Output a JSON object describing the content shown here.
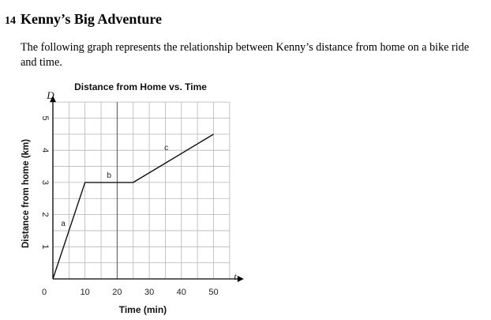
{
  "question": {
    "number": "14",
    "title": "Kenny’s Big Adventure",
    "text": "The following graph represents the relationship between Kenny’s distance from home on a bike ride and time."
  },
  "chart_data": {
    "type": "line",
    "title": "Distance from Home vs. Time",
    "xlabel": "Time (min)",
    "ylabel": "Distance from home (km)",
    "x_axis_letter": "t",
    "y_axis_letter": "D",
    "origin_label": "0",
    "xlim": [
      0,
      56
    ],
    "ylim": [
      0,
      5.5
    ],
    "x_ticks": [
      10,
      20,
      30,
      40,
      50
    ],
    "y_ticks": [
      1,
      2,
      3,
      4,
      5
    ],
    "grid": true,
    "series": [
      {
        "x": [
          0,
          10,
          25,
          50
        ],
        "y": [
          0,
          3,
          3,
          4.5
        ]
      }
    ],
    "annotations": [
      {
        "text": "a",
        "x": 3.2,
        "y": 1.65
      },
      {
        "text": "b",
        "x": 17.5,
        "y": 3.15
      },
      {
        "text": "c",
        "x": 35.3,
        "y": 4.0
      }
    ]
  }
}
